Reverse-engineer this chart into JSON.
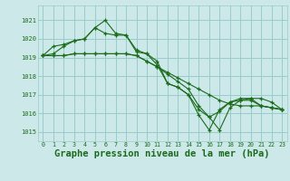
{
  "background_color": "#cce8e8",
  "grid_color": "#99cccc",
  "line_color": "#1a6b1a",
  "xlabel": "Graphe pression niveau de la mer (hPa)",
  "xlabel_fontsize": 7.5,
  "ylim": [
    1014.5,
    1021.8
  ],
  "xlim": [
    -0.5,
    23.5
  ],
  "yticks": [
    1015,
    1016,
    1017,
    1018,
    1019,
    1020,
    1021
  ],
  "xticks": [
    0,
    1,
    2,
    3,
    4,
    5,
    6,
    7,
    8,
    9,
    10,
    11,
    12,
    13,
    14,
    15,
    16,
    17,
    18,
    19,
    20,
    21,
    22,
    23
  ],
  "series": [
    [
      1019.1,
      1019.2,
      1019.6,
      1019.9,
      1020.0,
      1020.6,
      1021.0,
      1020.3,
      1020.2,
      1019.3,
      1019.2,
      1018.6,
      1017.6,
      1017.4,
      1017.0,
      1016.2,
      1015.8,
      1016.1,
      1016.6,
      1016.7,
      1016.7,
      1016.4,
      1016.3,
      1016.2
    ],
    [
      1019.1,
      1019.1,
      1019.1,
      1019.2,
      1019.2,
      1019.2,
      1019.2,
      1019.2,
      1019.2,
      1019.1,
      1018.8,
      1018.5,
      1018.2,
      1017.9,
      1017.6,
      1017.3,
      1017.0,
      1016.7,
      1016.5,
      1016.4,
      1016.4,
      1016.4,
      1016.3,
      1016.2
    ],
    [
      1019.1,
      1019.1,
      1019.1,
      1019.2,
      1019.2,
      1019.2,
      1019.2,
      1019.2,
      1019.2,
      1019.1,
      1018.8,
      1018.5,
      1018.1,
      1017.7,
      1017.3,
      1016.4,
      1015.8,
      1015.1,
      1016.3,
      1016.7,
      1016.8,
      1016.8,
      1016.6,
      1016.2
    ],
    [
      1019.1,
      1019.6,
      1019.7,
      1019.9,
      1020.0,
      1020.6,
      1020.3,
      1020.2,
      1020.2,
      1019.4,
      1019.2,
      1018.8,
      1017.6,
      1017.4,
      1017.0,
      1015.9,
      1015.1,
      1016.2,
      1016.6,
      1016.8,
      1016.8,
      1016.4,
      1016.3,
      1016.2
    ]
  ]
}
